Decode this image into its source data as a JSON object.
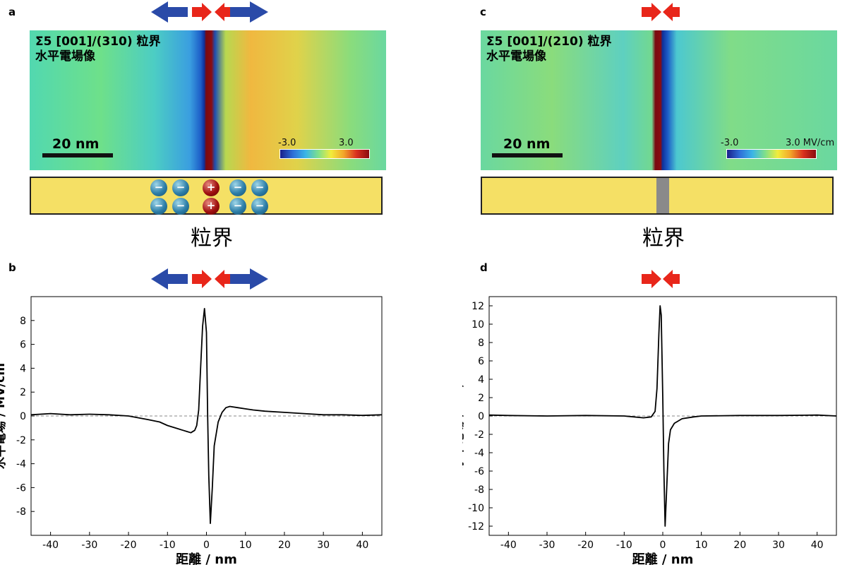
{
  "panels": {
    "a": {
      "letter": "a",
      "title_line1": "Σ5 [001]/(310) 粒界",
      "title_line2": "水平電場像",
      "scalebar": "20 nm",
      "cbar_min": "-3.0",
      "cbar_max": "3.0 MV/cm",
      "label": "粒界"
    },
    "b": {
      "letter": "b"
    },
    "c": {
      "letter": "c",
      "title_line1": "Σ5 [001]/(210) 粒界",
      "title_line2": "水平電場像",
      "scalebar": "20 nm",
      "cbar_min": "-3.0",
      "cbar_max": "3.0 MV/cm",
      "label": "粒界"
    },
    "d": {
      "letter": "d"
    }
  },
  "ions": {
    "neg": "−",
    "pos": "+"
  },
  "colors": {
    "arrow_blue": "#2a4aa8",
    "arrow_red": "#e8261a",
    "grain_yellow": "#f5e065",
    "boundary_gray": "#8a8a8a"
  },
  "chart_data": [
    {
      "type": "line",
      "panel": "b",
      "xlabel": "距離 / nm",
      "ylabel": "水平電場 / MV/cm",
      "xlim": [
        -45,
        45
      ],
      "ylim": [
        -10,
        10
      ],
      "xticks": [
        -40,
        -30,
        -20,
        -10,
        0,
        10,
        20,
        30,
        40
      ],
      "yticks": [
        -8,
        -6,
        -4,
        -2,
        0,
        2,
        4,
        6,
        8
      ],
      "zero_line": "dashed",
      "series": [
        {
          "x": [
            -45,
            -40,
            -35,
            -30,
            -25,
            -20,
            -15,
            -12,
            -10,
            -8,
            -6,
            -5,
            -4,
            -3,
            -2.5,
            -2,
            -1.5,
            -1,
            -0.5,
            0,
            0.3,
            0.6,
            1,
            1.5,
            2,
            3,
            4,
            5,
            6,
            8,
            10,
            12,
            15,
            20,
            25,
            30,
            35,
            40,
            45
          ],
          "y": [
            0.1,
            0.2,
            0.1,
            0.15,
            0.1,
            0.0,
            -0.3,
            -0.5,
            -0.8,
            -1.0,
            -1.2,
            -1.3,
            -1.4,
            -1.2,
            -0.8,
            0.5,
            4.0,
            7.5,
            9.0,
            7.0,
            0,
            -5.0,
            -9.0,
            -6.0,
            -2.5,
            -0.5,
            0.3,
            0.7,
            0.8,
            0.7,
            0.6,
            0.5,
            0.4,
            0.3,
            0.2,
            0.1,
            0.1,
            0.05,
            0.1
          ]
        }
      ]
    },
    {
      "type": "line",
      "panel": "d",
      "xlabel": "距離 / nm",
      "ylabel": "水平電場 / MV/cm",
      "xlim": [
        -45,
        45
      ],
      "ylim": [
        -13,
        13
      ],
      "xticks": [
        -40,
        -30,
        -20,
        -10,
        0,
        10,
        20,
        30,
        40
      ],
      "yticks": [
        -12,
        -10,
        -8,
        -6,
        -4,
        -2,
        0,
        2,
        4,
        6,
        8,
        10,
        12
      ],
      "zero_line": "dashed",
      "series": [
        {
          "x": [
            -45,
            -40,
            -30,
            -20,
            -10,
            -5,
            -3,
            -2,
            -1.5,
            -1,
            -0.7,
            -0.4,
            0,
            0.3,
            0.6,
            1,
            1.5,
            2,
            3,
            5,
            8,
            10,
            20,
            30,
            40,
            45
          ],
          "y": [
            0.1,
            0.05,
            0.0,
            0.05,
            0.0,
            -0.2,
            -0.1,
            0.5,
            3.0,
            9.0,
            12.0,
            11.0,
            2.0,
            -6.0,
            -12.0,
            -8.0,
            -3.0,
            -1.5,
            -0.8,
            -0.3,
            -0.1,
            0.0,
            0.05,
            0.05,
            0.1,
            0.0
          ]
        }
      ]
    }
  ]
}
